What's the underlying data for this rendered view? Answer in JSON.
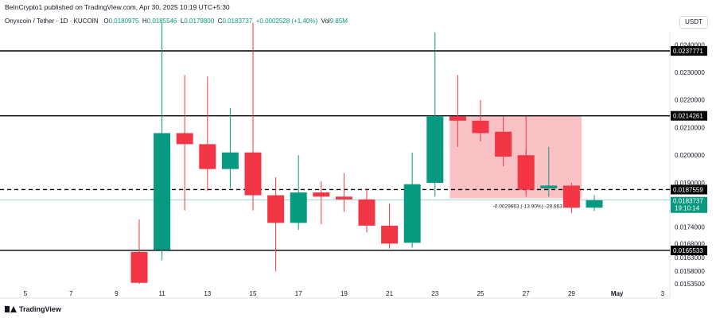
{
  "header": {
    "publisher": "BeInCrypto1 published on TradingView.com, Apr 30, 2025 10:19 UTC+5:30"
  },
  "symbol": {
    "name": "Onyxcoin / Tether · 1D · KUCOIN",
    "o_label": "O",
    "o_value": "0.0180975",
    "h_label": "H",
    "h_value": "0.0185546",
    "l_label": "L",
    "l_value": "0.0179800",
    "c_label": "C",
    "c_value": "0.0183737",
    "change": "+0.0002528 (+1.40%)",
    "vol_label": "Vol",
    "vol_value": "9.85M"
  },
  "currency_button": "USDT",
  "logo_text": "TradingView",
  "colors": {
    "up": "#089981",
    "down": "#f23645",
    "range_fill": "#f7a6ab",
    "level_line": "#000000"
  },
  "chart_data": {
    "type": "candlestick",
    "y_axis_ticks": [
      "0.0240000",
      "0.0230000",
      "0.0220000",
      "0.0210000",
      "0.0200000",
      "0.0190000",
      "0.0174000",
      "0.0168000",
      "0.0163000",
      "0.0158000",
      "0.0153500"
    ],
    "x_axis_ticks": [
      "5",
      "7",
      "9",
      "11",
      "13",
      "15",
      "17",
      "19",
      "21",
      "23",
      "25",
      "27",
      "29",
      "May",
      "3"
    ],
    "levels": [
      {
        "value": 0.0237771,
        "label": "0.0237771",
        "style": "solid"
      },
      {
        "value": 0.0214261,
        "label": "0.0214261",
        "style": "solid"
      },
      {
        "value": 0.0187559,
        "label": "0.0187559",
        "style": "dashed"
      },
      {
        "value": 0.0165533,
        "label": "0.0165533",
        "style": "solid"
      }
    ],
    "price_tag": {
      "value": 0.0183737,
      "label": "0.0183737",
      "countdown": "19:10:14"
    },
    "range_annotation": {
      "from_day": 24,
      "to_day": 30,
      "top": 0.0214261,
      "bottom": 0.01844,
      "label": "-0.0029663 (-13.90%) -29,663"
    },
    "candles": [
      {
        "day": 10,
        "o": 0.0165,
        "h": 0.01767,
        "l": 0.01534,
        "c": 0.01538
      },
      {
        "day": 11,
        "o": 0.01657,
        "h": 0.0248,
        "l": 0.0162,
        "c": 0.0208
      },
      {
        "day": 12,
        "o": 0.0208,
        "h": 0.0229,
        "l": 0.018,
        "c": 0.0204
      },
      {
        "day": 13,
        "o": 0.0204,
        "h": 0.02285,
        "l": 0.0187,
        "c": 0.0195
      },
      {
        "day": 14,
        "o": 0.0195,
        "h": 0.0217,
        "l": 0.0188,
        "c": 0.0201
      },
      {
        "day": 15,
        "o": 0.0201,
        "h": 0.0248,
        "l": 0.018,
        "c": 0.01855
      },
      {
        "day": 16,
        "o": 0.01855,
        "h": 0.0192,
        "l": 0.0158,
        "c": 0.01755
      },
      {
        "day": 17,
        "o": 0.01755,
        "h": 0.02,
        "l": 0.0173,
        "c": 0.01865
      },
      {
        "day": 18,
        "o": 0.01865,
        "h": 0.01905,
        "l": 0.0175,
        "c": 0.0185
      },
      {
        "day": 19,
        "o": 0.0185,
        "h": 0.01935,
        "l": 0.01795,
        "c": 0.0184
      },
      {
        "day": 20,
        "o": 0.0184,
        "h": 0.0188,
        "l": 0.0172,
        "c": 0.01745
      },
      {
        "day": 21,
        "o": 0.01745,
        "h": 0.01825,
        "l": 0.01662,
        "c": 0.0168
      },
      {
        "day": 22,
        "o": 0.01683,
        "h": 0.0201,
        "l": 0.01665,
        "c": 0.01895
      },
      {
        "day": 23,
        "o": 0.019,
        "h": 0.02445,
        "l": 0.0185,
        "c": 0.02142
      },
      {
        "day": 24,
        "o": 0.0214,
        "h": 0.0229,
        "l": 0.0203,
        "c": 0.02125
      },
      {
        "day": 25,
        "o": 0.02125,
        "h": 0.022,
        "l": 0.0205,
        "c": 0.0208
      },
      {
        "day": 26,
        "o": 0.02085,
        "h": 0.0214,
        "l": 0.0196,
        "c": 0.01995
      },
      {
        "day": 27,
        "o": 0.02,
        "h": 0.0202,
        "l": 0.0186,
        "c": 0.01875
      },
      {
        "day": 28,
        "o": 0.0188,
        "h": 0.0203,
        "l": 0.0185,
        "c": 0.0189
      },
      {
        "day": 29,
        "o": 0.0189,
        "h": 0.019,
        "l": 0.0179,
        "c": 0.0181
      },
      {
        "day": 30,
        "o": 0.0181,
        "h": 0.01855,
        "l": 0.01798,
        "c": 0.01837
      }
    ]
  }
}
